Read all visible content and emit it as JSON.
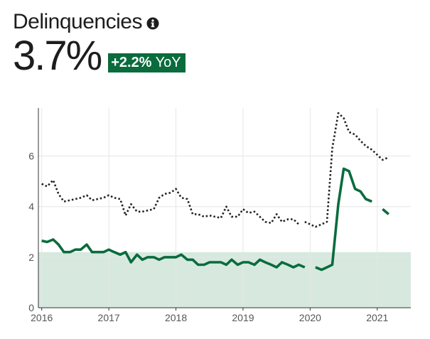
{
  "header": {
    "title": "Delinquencies",
    "info_icon": "info-icon",
    "metric_value": "3.7%",
    "badge_delta": "+2.2%",
    "badge_suffix": "YoY"
  },
  "colors": {
    "primary_line": "#0a6b3d",
    "dotted_line": "#222222",
    "band_fill": "#d7e9df",
    "badge_bg": "#0a6b3d",
    "grid": "#e6e6e6",
    "axis": "#333333",
    "tick_text": "#555555"
  },
  "chart_data": {
    "type": "line",
    "title": "",
    "xlabel": "",
    "ylabel": "",
    "xlim": [
      2015.95,
      2021.5
    ],
    "ylim": [
      0,
      7.9
    ],
    "yticks": [
      0,
      2,
      4,
      6
    ],
    "xticks": [
      2016,
      2017,
      2018,
      2019,
      2020,
      2021
    ],
    "grid": true,
    "band": {
      "y0": 0,
      "y1": 2.2
    },
    "series": [
      {
        "style": "dotted",
        "segments": [
          [
            [
              2016.0,
              4.9
            ],
            [
              2016.08,
              4.8
            ],
            [
              2016.17,
              5.05
            ],
            [
              2016.25,
              4.5
            ],
            [
              2016.33,
              4.2
            ],
            [
              2016.42,
              4.25
            ],
            [
              2016.5,
              4.3
            ],
            [
              2016.58,
              4.35
            ],
            [
              2016.67,
              4.45
            ],
            [
              2016.75,
              4.25
            ],
            [
              2016.83,
              4.3
            ],
            [
              2016.92,
              4.35
            ],
            [
              2017.0,
              4.45
            ],
            [
              2017.08,
              4.35
            ],
            [
              2017.17,
              4.3
            ],
            [
              2017.25,
              3.65
            ],
            [
              2017.33,
              4.1
            ],
            [
              2017.42,
              3.8
            ],
            [
              2017.5,
              3.8
            ],
            [
              2017.58,
              3.85
            ],
            [
              2017.67,
              3.9
            ],
            [
              2017.75,
              4.35
            ],
            [
              2017.83,
              4.5
            ],
            [
              2017.92,
              4.55
            ],
            [
              2018.0,
              4.7
            ],
            [
              2018.08,
              4.35
            ],
            [
              2018.17,
              4.3
            ],
            [
              2018.25,
              3.7
            ],
            [
              2018.33,
              3.7
            ],
            [
              2018.42,
              3.6
            ],
            [
              2018.5,
              3.65
            ],
            [
              2018.58,
              3.6
            ],
            [
              2018.67,
              3.55
            ],
            [
              2018.75,
              4.0
            ],
            [
              2018.83,
              3.6
            ],
            [
              2018.92,
              3.6
            ],
            [
              2019.0,
              3.9
            ],
            [
              2019.08,
              3.75
            ],
            [
              2019.17,
              3.8
            ],
            [
              2019.25,
              3.6
            ],
            [
              2019.33,
              3.4
            ],
            [
              2019.42,
              3.35
            ],
            [
              2019.5,
              3.7
            ],
            [
              2019.58,
              3.4
            ],
            [
              2019.67,
              3.5
            ],
            [
              2019.75,
              3.5
            ],
            [
              2019.83,
              3.3
            ]
          ],
          [
            [
              2019.92,
              3.4
            ],
            [
              2020.0,
              3.3
            ],
            [
              2020.08,
              3.2
            ],
            [
              2020.17,
              3.3
            ],
            [
              2020.25,
              3.4
            ],
            [
              2020.33,
              6.3
            ],
            [
              2020.42,
              7.7
            ],
            [
              2020.5,
              7.5
            ],
            [
              2020.58,
              6.95
            ],
            [
              2020.67,
              6.85
            ],
            [
              2020.75,
              6.6
            ],
            [
              2020.83,
              6.4
            ],
            [
              2020.92,
              6.25
            ],
            [
              2021.0,
              6.05
            ],
            [
              2021.08,
              5.85
            ],
            [
              2021.17,
              5.95
            ]
          ]
        ]
      },
      {
        "style": "solid",
        "segments": [
          [
            [
              2016.0,
              2.65
            ],
            [
              2016.08,
              2.6
            ],
            [
              2016.17,
              2.7
            ],
            [
              2016.25,
              2.5
            ],
            [
              2016.33,
              2.2
            ],
            [
              2016.42,
              2.2
            ],
            [
              2016.5,
              2.3
            ],
            [
              2016.58,
              2.3
            ],
            [
              2016.67,
              2.5
            ],
            [
              2016.75,
              2.2
            ],
            [
              2016.83,
              2.2
            ],
            [
              2016.92,
              2.2
            ],
            [
              2017.0,
              2.3
            ],
            [
              2017.08,
              2.2
            ],
            [
              2017.17,
              2.1
            ],
            [
              2017.25,
              2.2
            ],
            [
              2017.33,
              1.8
            ],
            [
              2017.42,
              2.1
            ],
            [
              2017.5,
              1.9
            ],
            [
              2017.58,
              2.0
            ],
            [
              2017.67,
              2.0
            ],
            [
              2017.75,
              1.9
            ],
            [
              2017.83,
              2.0
            ],
            [
              2017.92,
              2.0
            ],
            [
              2018.0,
              2.0
            ],
            [
              2018.08,
              2.1
            ],
            [
              2018.17,
              1.9
            ],
            [
              2018.25,
              1.9
            ],
            [
              2018.33,
              1.7
            ],
            [
              2018.42,
              1.7
            ],
            [
              2018.5,
              1.8
            ],
            [
              2018.58,
              1.8
            ],
            [
              2018.67,
              1.8
            ],
            [
              2018.75,
              1.7
            ],
            [
              2018.83,
              1.9
            ],
            [
              2018.92,
              1.7
            ],
            [
              2019.0,
              1.8
            ],
            [
              2019.08,
              1.8
            ],
            [
              2019.17,
              1.7
            ],
            [
              2019.25,
              1.9
            ],
            [
              2019.33,
              1.8
            ],
            [
              2019.42,
              1.7
            ],
            [
              2019.5,
              1.6
            ],
            [
              2019.58,
              1.8
            ],
            [
              2019.67,
              1.7
            ],
            [
              2019.75,
              1.6
            ],
            [
              2019.83,
              1.7
            ],
            [
              2019.92,
              1.6
            ]
          ],
          [
            [
              2020.08,
              1.6
            ],
            [
              2020.17,
              1.5
            ],
            [
              2020.25,
              1.6
            ],
            [
              2020.33,
              1.7
            ],
            [
              2020.42,
              4.1
            ],
            [
              2020.5,
              5.5
            ],
            [
              2020.58,
              5.4
            ],
            [
              2020.67,
              4.7
            ],
            [
              2020.75,
              4.6
            ],
            [
              2020.83,
              4.3
            ],
            [
              2020.92,
              4.2
            ]
          ],
          [
            [
              2021.08,
              3.9
            ],
            [
              2021.17,
              3.7
            ]
          ]
        ]
      }
    ]
  }
}
